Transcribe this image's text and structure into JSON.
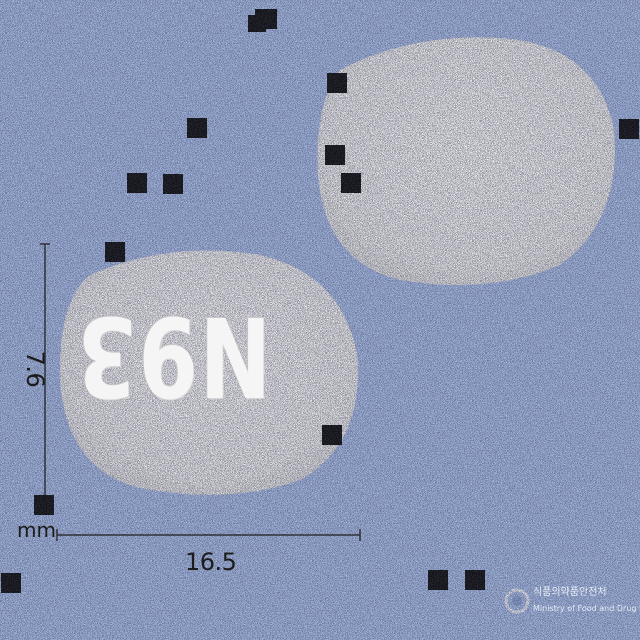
{
  "image": {
    "subject": "two white oval tablets on a blue background",
    "background_color": "#a9c0ea",
    "tablet_color": "#f4f4f4"
  },
  "tablet_front": {
    "imprint": "N93"
  },
  "measurements": {
    "unit": "mm",
    "width": "16.5",
    "height": "7.6"
  },
  "watermark": {
    "line1": "식품의약품안전처",
    "line2": "Ministry of Food and Drug Safety"
  }
}
